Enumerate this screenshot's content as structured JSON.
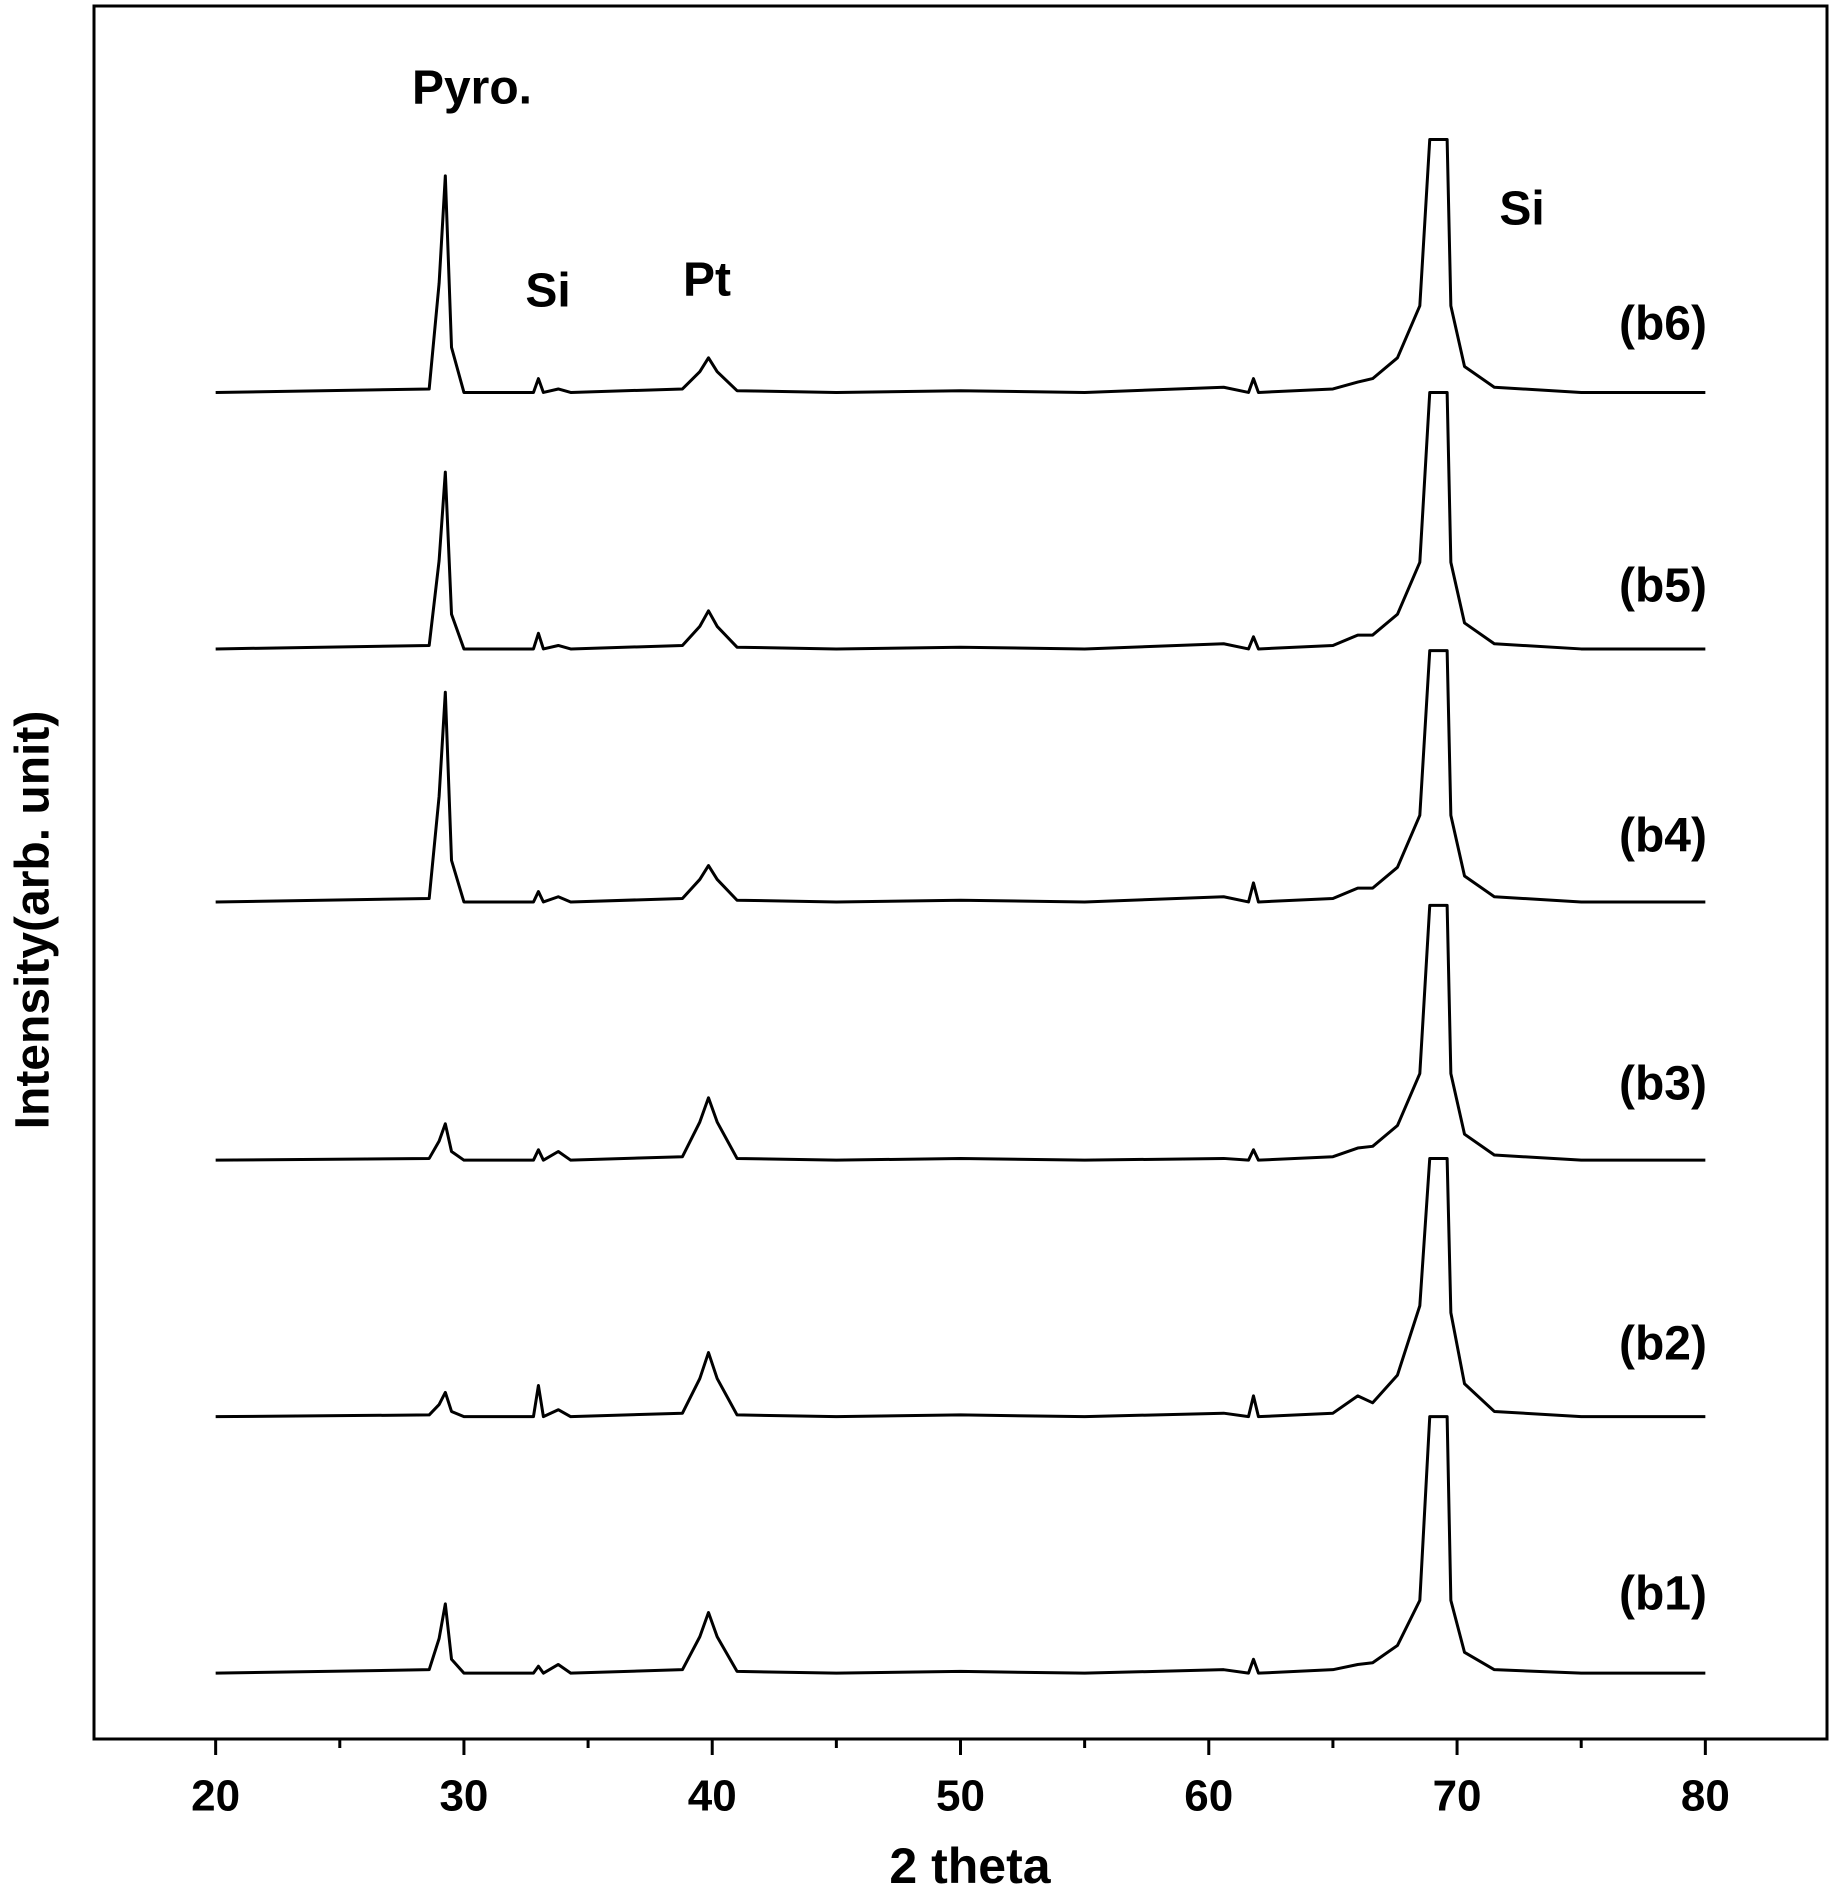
{
  "chart_data": {
    "type": "line",
    "x_label": "2 theta",
    "y_label": "Intensity(arb. unit)",
    "xlim": [
      15.1,
      84.9
    ],
    "ylim": [
      0,
      100
    ],
    "xticks": [
      20,
      30,
      40,
      50,
      60,
      70,
      80
    ],
    "xminorticks": [
      25,
      35,
      45,
      55,
      65,
      75
    ],
    "annotations": [
      "Pyro.",
      "Si",
      "Pt",
      "Si"
    ],
    "x": [
      20,
      28.6,
      29.0,
      29.25,
      29.5,
      30.0,
      32.8,
      33.0,
      33.2,
      33.8,
      34.3,
      38.8,
      39.5,
      39.85,
      40.2,
      41.0,
      45,
      50,
      55,
      60.6,
      61.6,
      61.8,
      62.0,
      65,
      66.0,
      66.6,
      67.6,
      68.5,
      68.9,
      69.05,
      69.6,
      69.75,
      70.3,
      71.5,
      75,
      80
    ],
    "series": [
      {
        "name": "(b6)",
        "color": "#000000",
        "values": [
          77.7,
          77.9,
          84.0,
          90.2,
          80.3,
          77.7,
          77.7,
          78.5,
          77.7,
          77.9,
          77.7,
          77.9,
          78.9,
          79.7,
          78.9,
          77.8,
          77.7,
          77.8,
          77.7,
          78.0,
          77.7,
          78.5,
          77.7,
          77.9,
          78.3,
          78.5,
          79.7,
          82.7,
          92.3,
          92.3,
          92.3,
          82.7,
          79.2,
          78.0,
          77.7,
          77.7
        ]
      },
      {
        "name": "(b5)",
        "color": "#000000",
        "values": [
          62.9,
          63.1,
          68.0,
          73.1,
          64.9,
          62.9,
          62.9,
          63.8,
          62.9,
          63.1,
          62.9,
          63.1,
          64.2,
          65.1,
          64.2,
          63.0,
          62.9,
          63.0,
          62.9,
          63.2,
          62.9,
          63.6,
          62.9,
          63.1,
          63.7,
          63.7,
          64.9,
          67.9,
          77.7,
          77.7,
          77.7,
          67.9,
          64.4,
          63.2,
          62.9,
          62.9
        ]
      },
      {
        "name": "(b4)",
        "color": "#000000",
        "values": [
          48.3,
          48.5,
          54.4,
          60.4,
          50.7,
          48.3,
          48.3,
          48.9,
          48.3,
          48.6,
          48.3,
          48.5,
          49.6,
          50.4,
          49.6,
          48.4,
          48.3,
          48.4,
          48.3,
          48.6,
          48.3,
          49.4,
          48.3,
          48.5,
          49.1,
          49.1,
          50.3,
          53.3,
          62.8,
          62.8,
          62.8,
          53.3,
          49.8,
          48.6,
          48.3,
          48.3
        ]
      },
      {
        "name": "(b3)",
        "color": "#000000",
        "values": [
          33.4,
          33.5,
          34.5,
          35.5,
          33.9,
          33.4,
          33.4,
          34.0,
          33.4,
          33.9,
          33.4,
          33.6,
          35.6,
          37.0,
          35.6,
          33.5,
          33.4,
          33.5,
          33.4,
          33.5,
          33.4,
          34.0,
          33.4,
          33.6,
          34.1,
          34.2,
          35.4,
          38.4,
          48.1,
          48.1,
          48.1,
          38.4,
          34.9,
          33.7,
          33.4,
          33.4
        ]
      },
      {
        "name": "(b2)",
        "color": "#000000",
        "values": [
          18.6,
          18.7,
          19.3,
          20.0,
          18.9,
          18.6,
          18.6,
          20.4,
          18.6,
          19.0,
          18.6,
          18.8,
          20.8,
          22.3,
          20.8,
          18.7,
          18.6,
          18.7,
          18.6,
          18.8,
          18.6,
          19.8,
          18.6,
          18.8,
          19.8,
          19.4,
          21.0,
          25.0,
          33.5,
          33.5,
          33.5,
          24.6,
          20.5,
          18.9,
          18.6,
          18.6
        ]
      },
      {
        "name": "(b1)",
        "color": "#000000",
        "values": [
          3.8,
          4.0,
          5.8,
          7.8,
          4.6,
          3.8,
          3.8,
          4.2,
          3.8,
          4.3,
          3.8,
          4.0,
          5.9,
          7.3,
          5.9,
          3.9,
          3.8,
          3.9,
          3.8,
          4.0,
          3.8,
          4.6,
          3.8,
          4.0,
          4.3,
          4.4,
          5.4,
          8.0,
          18.6,
          18.6,
          18.6,
          8.0,
          5.0,
          4.0,
          3.8,
          3.8
        ]
      }
    ]
  }
}
